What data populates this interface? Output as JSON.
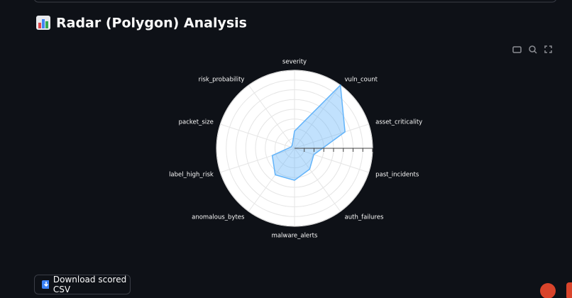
{
  "chart_data": {
    "type": "radar",
    "title": "Radar (Polygon) Analysis",
    "categories": [
      "severity",
      "vuln_count",
      "asset_criticality",
      "past_incidents",
      "auth_failures",
      "malware_alerts",
      "anomalous_bytes",
      "label_high_risk",
      "packet_size",
      "risk_probability"
    ],
    "values": [
      0.22,
      1.0,
      0.68,
      0.26,
      0.33,
      0.41,
      0.42,
      0.3,
      0.05,
      0.05
    ],
    "color": "#63b4fa",
    "rlim": [
      0,
      1
    ],
    "rticks": [
      0.125,
      0.25,
      0.375,
      0.5,
      0.625,
      0.75,
      0.875,
      1
    ],
    "grid": true
  },
  "button": "Download scored CSV"
}
